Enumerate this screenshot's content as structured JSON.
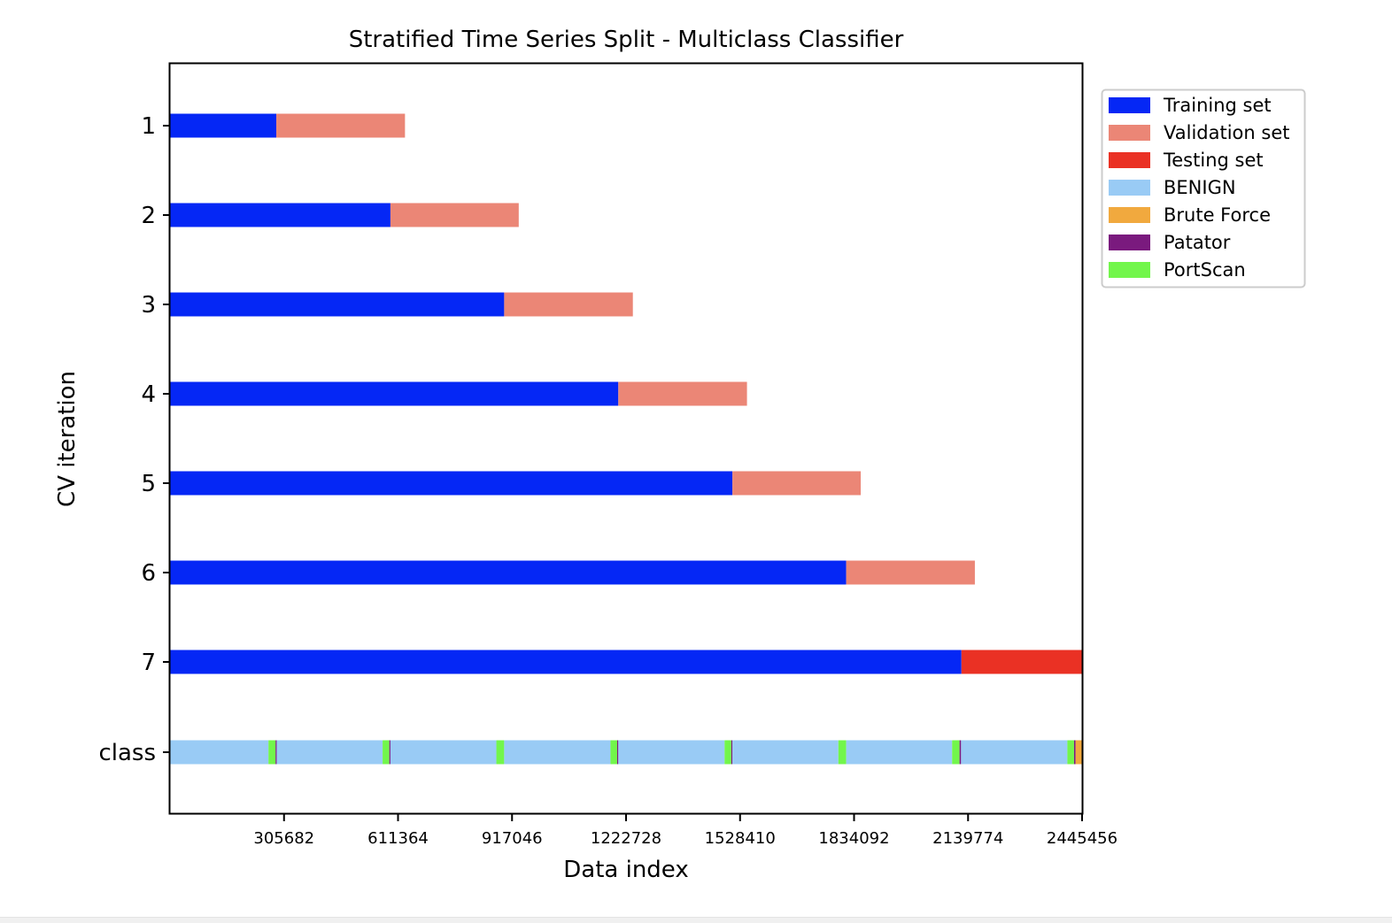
{
  "chart_data": {
    "type": "bar",
    "title": "Stratified Time Series Split - Multiclass Classifier",
    "xlabel": "Data index",
    "ylabel": "CV iteration",
    "xlim": [
      0,
      2445456
    ],
    "xticks": [
      305682,
      611364,
      917046,
      1222728,
      1528410,
      1834092,
      2139774,
      2445456
    ],
    "xtick_labels": [
      "305682",
      "611364",
      "917046",
      "1222728",
      "1528410",
      "1834092",
      "2139774",
      "2445456"
    ],
    "row_labels": [
      "1",
      "2",
      "3",
      "4",
      "5",
      "6",
      "7",
      "class"
    ],
    "colors": {
      "train": "#0527f5",
      "validation": "#eb8676",
      "test": "#ea3124",
      "benign": "#99cbf5",
      "brute_force": "#f1a93e",
      "patator": "#7a1a7e",
      "portscan": "#72f64b"
    },
    "legend_position": "upper right, outside plot",
    "legend": [
      {
        "label": "Training set",
        "key": "train"
      },
      {
        "label": "Validation set",
        "key": "validation"
      },
      {
        "label": "Testing set",
        "key": "test"
      },
      {
        "label": "BENIGN",
        "key": "benign"
      },
      {
        "label": "Brute Force",
        "key": "brute_force"
      },
      {
        "label": "Patator",
        "key": "patator"
      },
      {
        "label": "PortScan",
        "key": "portscan"
      }
    ],
    "splits": [
      {
        "iteration": "1",
        "train": [
          0,
          285000
        ],
        "validation": [
          285000,
          630000
        ]
      },
      {
        "iteration": "2",
        "train": [
          0,
          591000
        ],
        "validation": [
          591000,
          935000
        ]
      },
      {
        "iteration": "3",
        "train": [
          0,
          896000
        ],
        "validation": [
          896000,
          1241000
        ]
      },
      {
        "iteration": "4",
        "train": [
          0,
          1202000
        ],
        "validation": [
          1202000,
          1547000
        ]
      },
      {
        "iteration": "5",
        "train": [
          0,
          1508000
        ],
        "validation": [
          1508000,
          1852000
        ]
      },
      {
        "iteration": "6",
        "train": [
          0,
          1813000
        ],
        "validation": [
          1813000,
          2158000
        ]
      },
      {
        "iteration": "7",
        "train": [
          0,
          2122000
        ],
        "test": [
          2122000,
          2445456
        ]
      }
    ],
    "class_segments": [
      {
        "start": 0,
        "end": 264000,
        "class": "benign"
      },
      {
        "start": 264000,
        "end": 283000,
        "class": "portscan"
      },
      {
        "start": 283000,
        "end": 286000,
        "class": "patator"
      },
      {
        "start": 286000,
        "end": 570000,
        "class": "benign"
      },
      {
        "start": 570000,
        "end": 588000,
        "class": "portscan"
      },
      {
        "start": 588000,
        "end": 591000,
        "class": "patator"
      },
      {
        "start": 591000,
        "end": 875000,
        "class": "benign"
      },
      {
        "start": 875000,
        "end": 896000,
        "class": "portscan"
      },
      {
        "start": 896000,
        "end": 1181000,
        "class": "benign"
      },
      {
        "start": 1181000,
        "end": 1199000,
        "class": "portscan"
      },
      {
        "start": 1199000,
        "end": 1202000,
        "class": "patator"
      },
      {
        "start": 1202000,
        "end": 1487000,
        "class": "benign"
      },
      {
        "start": 1487000,
        "end": 1505000,
        "class": "portscan"
      },
      {
        "start": 1505000,
        "end": 1508000,
        "class": "patator"
      },
      {
        "start": 1508000,
        "end": 1792000,
        "class": "benign"
      },
      {
        "start": 1792000,
        "end": 1813000,
        "class": "portscan"
      },
      {
        "start": 1813000,
        "end": 2097000,
        "class": "benign"
      },
      {
        "start": 2097000,
        "end": 2117000,
        "class": "portscan"
      },
      {
        "start": 2117000,
        "end": 2121000,
        "class": "patator"
      },
      {
        "start": 2121000,
        "end": 2406000,
        "class": "benign"
      },
      {
        "start": 2406000,
        "end": 2424000,
        "class": "portscan"
      },
      {
        "start": 2424000,
        "end": 2428000,
        "class": "patator"
      },
      {
        "start": 2428000,
        "end": 2445456,
        "class": "brute_force"
      }
    ]
  }
}
